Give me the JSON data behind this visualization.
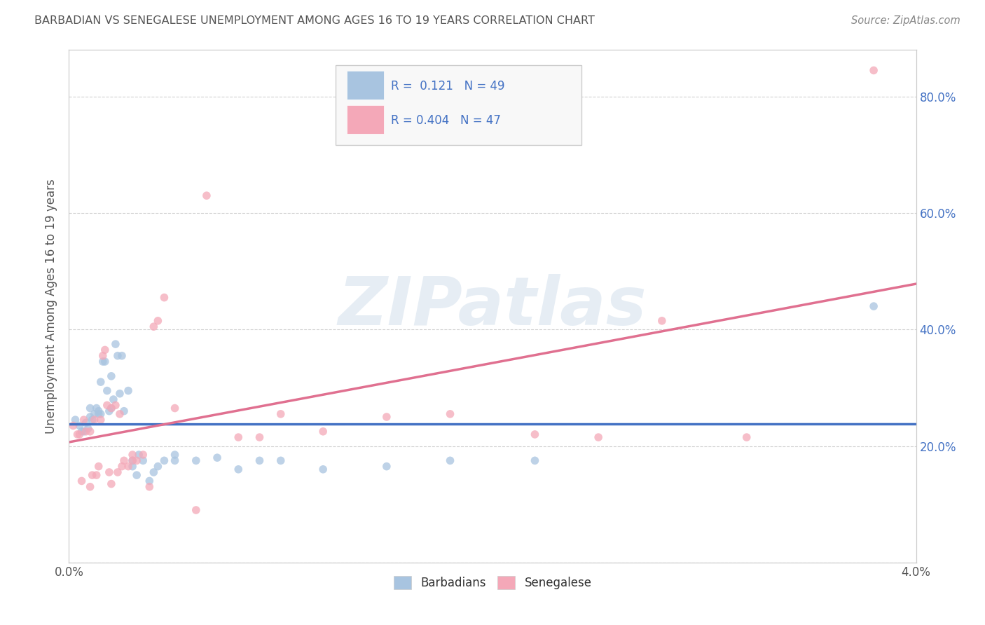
{
  "title": "BARBADIAN VS SENEGALESE UNEMPLOYMENT AMONG AGES 16 TO 19 YEARS CORRELATION CHART",
  "source": "Source: ZipAtlas.com",
  "ylabel": "Unemployment Among Ages 16 to 19 years",
  "xlim": [
    0.0,
    0.04
  ],
  "ylim": [
    0.0,
    0.88
  ],
  "xticks": [
    0.0,
    0.005,
    0.01,
    0.015,
    0.02,
    0.025,
    0.03,
    0.035,
    0.04
  ],
  "yticks": [
    0.0,
    0.2,
    0.4,
    0.6,
    0.8
  ],
  "right_ytick_labels": [
    "",
    "20.0%",
    "40.0%",
    "60.0%",
    "80.0%"
  ],
  "xtick_labels": [
    "0.0%",
    "",
    "",
    "",
    "",
    "",
    "",
    "",
    "4.0%"
  ],
  "blue_R": 0.121,
  "blue_N": 49,
  "pink_R": 0.404,
  "pink_N": 47,
  "blue_color": "#a8c4e0",
  "pink_color": "#f4a8b8",
  "blue_line_color": "#4472c4",
  "pink_line_color": "#e07090",
  "scatter_alpha": 0.75,
  "marker_size": 70,
  "watermark_text": "ZIPatlas",
  "watermark_color": "#c8d8e8",
  "watermark_alpha": 0.45,
  "legend_label_blue": "Barbadians",
  "legend_label_pink": "Senegalese",
  "barbadians_x": [
    0.0003,
    0.0005,
    0.0006,
    0.0007,
    0.0008,
    0.0009,
    0.001,
    0.001,
    0.0011,
    0.0012,
    0.0013,
    0.0014,
    0.0014,
    0.0015,
    0.0015,
    0.0016,
    0.0017,
    0.0018,
    0.0019,
    0.002,
    0.002,
    0.0021,
    0.0022,
    0.0023,
    0.0024,
    0.0025,
    0.0026,
    0.0028,
    0.003,
    0.003,
    0.0032,
    0.0033,
    0.0035,
    0.0038,
    0.004,
    0.0042,
    0.0045,
    0.005,
    0.005,
    0.006,
    0.007,
    0.008,
    0.009,
    0.01,
    0.012,
    0.015,
    0.018,
    0.022,
    0.038
  ],
  "barbadians_y": [
    0.245,
    0.235,
    0.225,
    0.225,
    0.24,
    0.23,
    0.25,
    0.265,
    0.245,
    0.255,
    0.265,
    0.255,
    0.26,
    0.31,
    0.255,
    0.345,
    0.345,
    0.295,
    0.26,
    0.265,
    0.32,
    0.28,
    0.375,
    0.355,
    0.29,
    0.355,
    0.26,
    0.295,
    0.165,
    0.175,
    0.15,
    0.185,
    0.175,
    0.14,
    0.155,
    0.165,
    0.175,
    0.185,
    0.175,
    0.175,
    0.18,
    0.16,
    0.175,
    0.175,
    0.16,
    0.165,
    0.175,
    0.175,
    0.44
  ],
  "senegalese_x": [
    0.0002,
    0.0004,
    0.0005,
    0.0006,
    0.0007,
    0.0008,
    0.001,
    0.001,
    0.0011,
    0.0012,
    0.0013,
    0.0014,
    0.0015,
    0.0016,
    0.0017,
    0.0018,
    0.0019,
    0.002,
    0.002,
    0.0022,
    0.0023,
    0.0024,
    0.0025,
    0.0026,
    0.0028,
    0.003,
    0.003,
    0.0032,
    0.0035,
    0.0038,
    0.004,
    0.0042,
    0.0045,
    0.005,
    0.006,
    0.0065,
    0.008,
    0.009,
    0.01,
    0.012,
    0.015,
    0.018,
    0.022,
    0.025,
    0.028,
    0.032,
    0.038
  ],
  "senegalese_y": [
    0.235,
    0.22,
    0.22,
    0.14,
    0.245,
    0.225,
    0.225,
    0.13,
    0.15,
    0.245,
    0.15,
    0.165,
    0.245,
    0.355,
    0.365,
    0.27,
    0.155,
    0.265,
    0.135,
    0.27,
    0.155,
    0.255,
    0.165,
    0.175,
    0.165,
    0.185,
    0.175,
    0.175,
    0.185,
    0.13,
    0.405,
    0.415,
    0.455,
    0.265,
    0.09,
    0.63,
    0.215,
    0.215,
    0.255,
    0.225,
    0.25,
    0.255,
    0.22,
    0.215,
    0.415,
    0.215,
    0.845
  ]
}
